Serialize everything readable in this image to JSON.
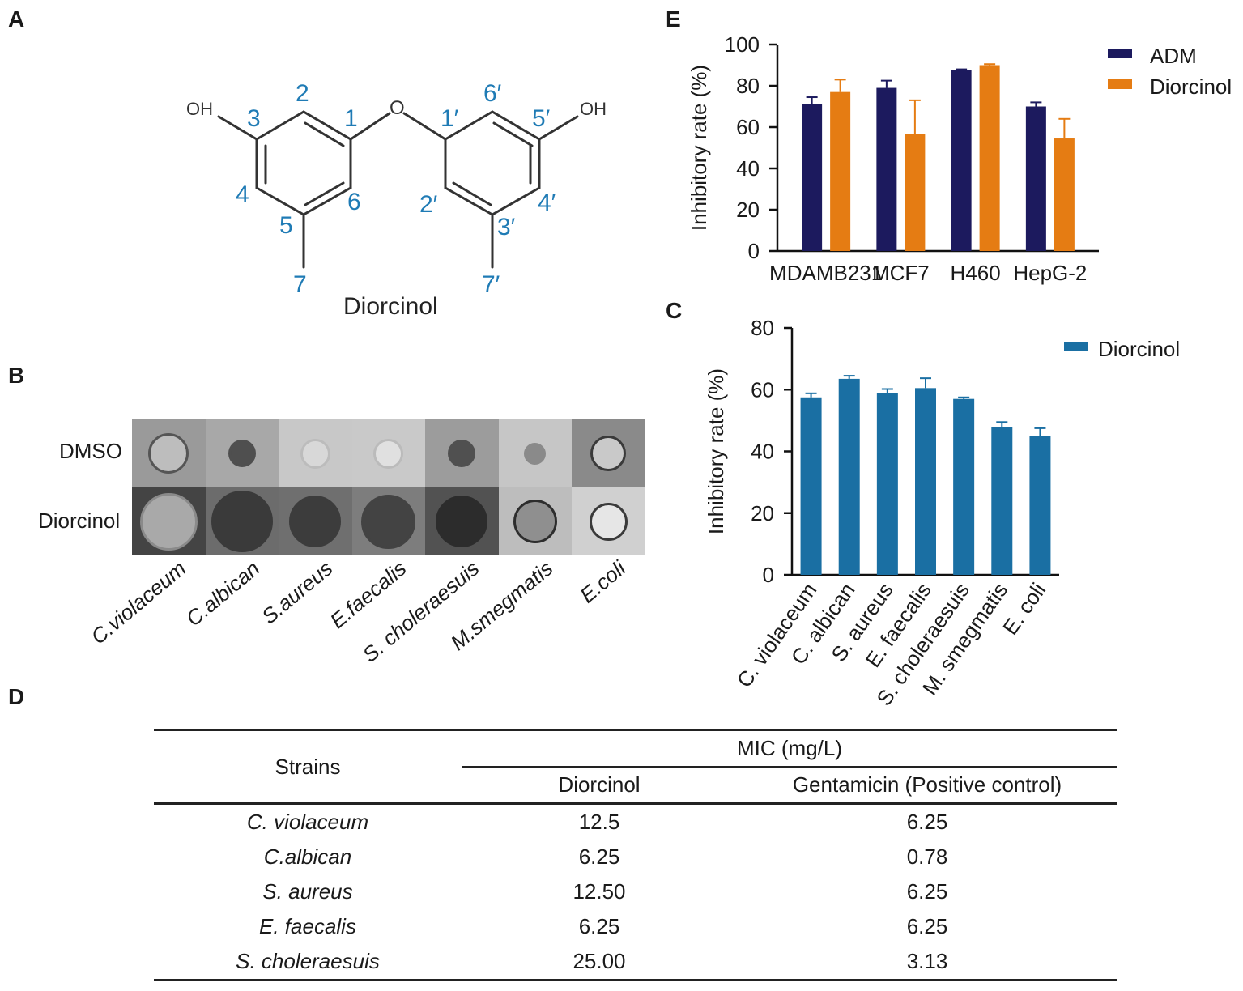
{
  "panels": {
    "a": "A",
    "b": "B",
    "c": "C",
    "d": "D",
    "e": "E"
  },
  "structure": {
    "compound_name": "Diorcinol",
    "oh_left": "OH",
    "oh_right": "OH",
    "o_bridge": "O",
    "numbers": {
      "n1": "1",
      "n2": "2",
      "n3": "3",
      "n4": "4",
      "n5": "5",
      "n6": "6",
      "n7": "7",
      "n1p": "1′",
      "n2p": "2′",
      "n3p": "3′",
      "n4p": "4′",
      "n5p": "5′",
      "n6p": "6′",
      "n7p": "7′"
    }
  },
  "panel_b": {
    "row_labels": [
      "DMSO",
      "Diorcinol"
    ],
    "strains": [
      "C.violaceum",
      "C.albican",
      "S.aureus",
      "E.faecalis",
      "S. choleraesuis",
      "M.smegmatis",
      "E.coli"
    ],
    "images": {
      "dmso": [
        {
          "bg": "#9a9a9a",
          "spot": "#bdbdbd",
          "ring": "#555",
          "r": 0.3
        },
        {
          "bg": "#a8a8a8",
          "spot": "#4f4f4f",
          "ring": "#4f4f4f",
          "r": 0.2
        },
        {
          "bg": "#c8c8c8",
          "spot": "#d8d8d8",
          "ring": "#bcbcbc",
          "r": 0.22
        },
        {
          "bg": "#c9c9c9",
          "spot": "#e0e0e0",
          "ring": "#bbbbbb",
          "r": 0.22
        },
        {
          "bg": "#9c9c9c",
          "spot": "#505050",
          "ring": "#505050",
          "r": 0.2
        },
        {
          "bg": "#c6c6c6",
          "spot": "#8a8a8a",
          "ring": "#8a8a8a",
          "r": 0.16
        },
        {
          "bg": "#8a8a8a",
          "spot": "#c9c9c9",
          "ring": "#3a3a3a",
          "r": 0.26
        }
      ],
      "diorcinol": [
        {
          "bg": "#444444",
          "spot": "#a9a9a9",
          "ring": "#8a8a8a",
          "r": 0.42
        },
        {
          "bg": "#6c6c6c",
          "spot": "#3a3a3a",
          "ring": "#3a3a3a",
          "r": 0.45
        },
        {
          "bg": "#6f6f6f",
          "spot": "#3c3c3c",
          "ring": "#3c3c3c",
          "r": 0.38
        },
        {
          "bg": "#7d7d7d",
          "spot": "#434343",
          "ring": "#434343",
          "r": 0.4
        },
        {
          "bg": "#525252",
          "spot": "#2c2c2c",
          "ring": "#2c2c2c",
          "r": 0.38
        },
        {
          "bg": "#bdbdbd",
          "spot": "#8f8f8f",
          "ring": "#2d2d2d",
          "r": 0.32
        },
        {
          "bg": "#d0d0d0",
          "spot": "#e6e6e6",
          "ring": "#3a3a3a",
          "r": 0.28
        }
      ]
    }
  },
  "chart_data": [
    {
      "id": "E",
      "type": "bar",
      "categories": [
        "MDAMB231",
        "MCF7",
        "H460",
        "HepG-2"
      ],
      "series": [
        {
          "name": "ADM",
          "color": "#1c1a5e",
          "values": [
            71,
            79,
            87.5,
            70
          ],
          "errors": [
            3.5,
            3.5,
            0.5,
            2
          ]
        },
        {
          "name": "Diorcinol",
          "color": "#e57c13",
          "values": [
            77,
            56.5,
            90,
            54.5
          ],
          "errors": [
            6,
            16.5,
            0.5,
            9.5
          ]
        }
      ],
      "ylabel": "Inhibitory rate (%)",
      "yticks": [
        0,
        20,
        40,
        60,
        80,
        100
      ],
      "ylim": [
        0,
        100
      ],
      "legend": "top-right"
    },
    {
      "id": "C",
      "type": "bar",
      "categories": [
        "C. violaceum",
        "C. albican",
        "S. aureus",
        "E. faecalis",
        "S. choleraesuis",
        "M. smegmatis",
        "E. coli"
      ],
      "series": [
        {
          "name": "Diorcinol",
          "color": "#1a6fa3",
          "values": [
            57.5,
            63.5,
            59,
            60.5,
            57,
            48,
            45
          ],
          "errors": [
            1.3,
            1,
            1.2,
            3.2,
            0.5,
            1.5,
            2.5
          ]
        }
      ],
      "ylabel": "Inhibitory rate (%)",
      "yticks": [
        0,
        20,
        40,
        60,
        80
      ],
      "ylim": [
        0,
        80
      ],
      "legend": "top-right"
    }
  ],
  "table_d": {
    "header_strains": "Strains",
    "header_group": "MIC (mg/L)",
    "header_col1": "Diorcinol",
    "header_col2": "Gentamicin (Positive control)",
    "rows": [
      {
        "strain": "C. violaceum",
        "diorcinol": "12.5",
        "gentamicin": "6.25"
      },
      {
        "strain": "C.albican",
        "diorcinol": "6.25",
        "gentamicin": "0.78"
      },
      {
        "strain": "S. aureus",
        "diorcinol": "12.50",
        "gentamicin": "6.25"
      },
      {
        "strain": "E. faecalis",
        "diorcinol": "6.25",
        "gentamicin": "6.25"
      },
      {
        "strain": "S. choleraesuis",
        "diorcinol": "25.00",
        "gentamicin": "3.13"
      }
    ]
  }
}
